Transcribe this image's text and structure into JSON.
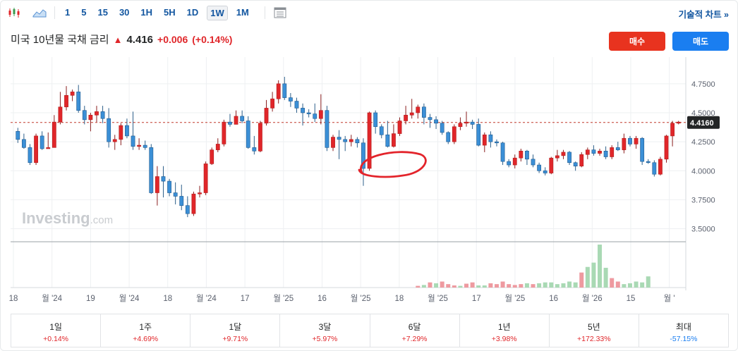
{
  "toolbar": {
    "timeframes": [
      "1",
      "5",
      "15",
      "30",
      "1H",
      "5H",
      "1D",
      "1W",
      "1M"
    ],
    "active_timeframe": "1W",
    "tech_chart_link": "기술적 차트 »"
  },
  "instrument": {
    "name": "미국 10년물 국채 금리",
    "price": "4.416",
    "change": "+0.006",
    "change_pct": "(+0.14%)",
    "up_color": "#e0262a"
  },
  "actions": {
    "buy_label": "매수",
    "sell_label": "매도"
  },
  "watermark": {
    "brand": "Investing",
    "suffix": ".com"
  },
  "chart_data": {
    "type": "candlestick",
    "y_ticks": [
      "4.7500",
      "4.5000",
      "4.2500",
      "4.0000",
      "3.7500",
      "3.5000"
    ],
    "ylim": [
      3.4,
      4.98
    ],
    "current_label": "4.4160",
    "current_value": 4.416,
    "x_labels": [
      "18",
      "월 '24",
      "19",
      "월 '24",
      "18",
      "월 '24",
      "17",
      "월 '25",
      "16",
      "월 '25",
      "18",
      "월 '25",
      "17",
      "월 '25",
      "16",
      "월 '26",
      "15",
      "월 '"
    ],
    "up_color": "#e0262a",
    "down_color": "#3b8fd6",
    "candles": [
      [
        4.34,
        4.37,
        4.24,
        4.27
      ],
      [
        4.27,
        4.32,
        4.19,
        4.2
      ],
      [
        4.2,
        4.23,
        4.05,
        4.07
      ],
      [
        4.07,
        4.32,
        4.05,
        4.3
      ],
      [
        4.3,
        4.34,
        4.18,
        4.19
      ],
      [
        4.19,
        4.33,
        4.19,
        4.2
      ],
      [
        4.2,
        4.48,
        4.2,
        4.42
      ],
      [
        4.42,
        4.68,
        4.4,
        4.55
      ],
      [
        4.55,
        4.73,
        4.52,
        4.65
      ],
      [
        4.65,
        4.7,
        4.6,
        4.68
      ],
      [
        4.68,
        4.74,
        4.5,
        4.52
      ],
      [
        4.52,
        4.56,
        4.4,
        4.44
      ],
      [
        4.44,
        4.5,
        4.34,
        4.48
      ],
      [
        4.48,
        4.56,
        4.42,
        4.51
      ],
      [
        4.51,
        4.56,
        4.41,
        4.45
      ],
      [
        4.45,
        4.54,
        4.2,
        4.25
      ],
      [
        4.25,
        4.31,
        4.18,
        4.27
      ],
      [
        4.27,
        4.41,
        4.22,
        4.39
      ],
      [
        4.39,
        4.45,
        4.28,
        4.3
      ],
      [
        4.3,
        4.51,
        4.18,
        4.21
      ],
      [
        4.21,
        4.28,
        4.18,
        4.22
      ],
      [
        4.22,
        4.26,
        4.18,
        4.2
      ],
      [
        4.2,
        4.23,
        3.8,
        3.81
      ],
      [
        3.81,
        4.04,
        3.7,
        3.95
      ],
      [
        3.95,
        4.04,
        3.77,
        3.91
      ],
      [
        3.91,
        3.93,
        3.78,
        3.81
      ],
      [
        3.81,
        3.9,
        3.71,
        3.78
      ],
      [
        3.78,
        3.88,
        3.66,
        3.7
      ],
      [
        3.7,
        3.78,
        3.6,
        3.63
      ],
      [
        3.63,
        3.82,
        3.61,
        3.8
      ],
      [
        3.8,
        3.87,
        3.77,
        3.81
      ],
      [
        3.81,
        4.08,
        3.79,
        4.06
      ],
      [
        4.06,
        4.2,
        4.05,
        4.18
      ],
      [
        4.18,
        4.28,
        4.16,
        4.23
      ],
      [
        4.23,
        4.44,
        4.21,
        4.42
      ],
      [
        4.42,
        4.49,
        4.38,
        4.4
      ],
      [
        4.4,
        4.52,
        4.4,
        4.47
      ],
      [
        4.47,
        4.52,
        4.41,
        4.43
      ],
      [
        4.43,
        4.47,
        4.19,
        4.2
      ],
      [
        4.2,
        4.3,
        4.14,
        4.17
      ],
      [
        4.17,
        4.43,
        4.16,
        4.41
      ],
      [
        4.41,
        4.61,
        4.39,
        4.54
      ],
      [
        4.54,
        4.68,
        4.51,
        4.62
      ],
      [
        4.62,
        4.78,
        4.58,
        4.75
      ],
      [
        4.75,
        4.81,
        4.61,
        4.63
      ],
      [
        4.63,
        4.67,
        4.55,
        4.6
      ],
      [
        4.6,
        4.63,
        4.5,
        4.54
      ],
      [
        4.54,
        4.58,
        4.39,
        4.5
      ],
      [
        4.5,
        4.53,
        4.46,
        4.49
      ],
      [
        4.49,
        4.58,
        4.42,
        4.45
      ],
      [
        4.45,
        4.66,
        4.4,
        4.52
      ],
      [
        4.52,
        4.56,
        4.17,
        4.2
      ],
      [
        4.2,
        4.31,
        4.17,
        4.29
      ],
      [
        4.29,
        4.35,
        4.1,
        4.27
      ],
      [
        4.27,
        4.3,
        4.17,
        4.25
      ],
      [
        4.25,
        4.31,
        4.21,
        4.27
      ],
      [
        4.27,
        4.29,
        4.2,
        4.24
      ],
      [
        4.24,
        4.28,
        3.87,
        4.02
      ],
      [
        4.02,
        4.51,
        4.0,
        4.5
      ],
      [
        4.5,
        4.52,
        4.32,
        4.38
      ],
      [
        4.38,
        4.4,
        4.28,
        4.31
      ],
      [
        4.31,
        4.43,
        4.2,
        4.21
      ],
      [
        4.21,
        4.4,
        4.2,
        4.32
      ],
      [
        4.32,
        4.46,
        4.3,
        4.43
      ],
      [
        4.43,
        4.56,
        4.4,
        4.48
      ],
      [
        4.48,
        4.62,
        4.45,
        4.5
      ],
      [
        4.5,
        4.57,
        4.45,
        4.55
      ],
      [
        4.55,
        4.58,
        4.4,
        4.46
      ],
      [
        4.46,
        4.49,
        4.37,
        4.44
      ],
      [
        4.44,
        4.47,
        4.36,
        4.41
      ],
      [
        4.41,
        4.43,
        4.31,
        4.33
      ],
      [
        4.33,
        4.34,
        4.23,
        4.25
      ],
      [
        4.25,
        4.4,
        4.23,
        4.38
      ],
      [
        4.38,
        4.46,
        4.35,
        4.41
      ],
      [
        4.41,
        4.51,
        4.38,
        4.42
      ],
      [
        4.42,
        4.44,
        4.36,
        4.4
      ],
      [
        4.4,
        4.45,
        4.21,
        4.22
      ],
      [
        4.22,
        4.33,
        4.16,
        4.31
      ],
      [
        4.31,
        4.34,
        4.2,
        4.25
      ],
      [
        4.25,
        4.27,
        4.21,
        4.24
      ],
      [
        4.24,
        4.25,
        4.05,
        4.08
      ],
      [
        4.08,
        4.1,
        4.03,
        4.05
      ],
      [
        4.05,
        4.14,
        4.02,
        4.11
      ],
      [
        4.11,
        4.19,
        4.08,
        4.17
      ],
      [
        4.17,
        4.18,
        4.05,
        4.1
      ],
      [
        4.1,
        4.14,
        4.03,
        4.05
      ],
      [
        4.05,
        4.07,
        3.98,
        4.0
      ],
      [
        4.0,
        4.03,
        3.96,
        3.98
      ],
      [
        3.98,
        4.12,
        3.97,
        4.11
      ],
      [
        4.11,
        4.18,
        4.08,
        4.13
      ],
      [
        4.13,
        4.18,
        4.1,
        4.16
      ],
      [
        4.16,
        4.17,
        4.05,
        4.07
      ],
      [
        4.07,
        4.08,
        4.0,
        4.04
      ],
      [
        4.04,
        4.16,
        4.03,
        4.14
      ],
      [
        4.14,
        4.2,
        4.1,
        4.18
      ],
      [
        4.18,
        4.22,
        4.13,
        4.15
      ],
      [
        4.15,
        4.19,
        4.13,
        4.17
      ],
      [
        4.17,
        4.21,
        4.1,
        4.12
      ],
      [
        4.12,
        4.22,
        4.1,
        4.2
      ],
      [
        4.2,
        4.25,
        4.17,
        4.18
      ],
      [
        4.18,
        4.32,
        4.15,
        4.28
      ],
      [
        4.28,
        4.3,
        4.21,
        4.23
      ],
      [
        4.23,
        4.3,
        4.19,
        4.28
      ],
      [
        4.28,
        4.29,
        4.05,
        4.08
      ],
      [
        4.08,
        4.1,
        4.06,
        4.07
      ],
      [
        4.07,
        4.09,
        3.95,
        3.97
      ],
      [
        3.97,
        4.12,
        3.96,
        4.1
      ],
      [
        4.1,
        4.31,
        4.07,
        4.3
      ],
      [
        4.3,
        4.43,
        4.21,
        4.41
      ],
      [
        4.41,
        4.43,
        4.4,
        4.42
      ]
    ],
    "volume_color": "#ee9aa0",
    "volume_up_color": "#a9d9b4",
    "volume": [
      [
        66,
        0.04,
        "d"
      ],
      [
        67,
        0.06,
        "u"
      ],
      [
        68,
        0.12,
        "d"
      ],
      [
        69,
        0.1,
        "u"
      ],
      [
        70,
        0.14,
        "d"
      ],
      [
        71,
        0.08,
        "d"
      ],
      [
        72,
        0.05,
        "d"
      ],
      [
        73,
        0.04,
        "u"
      ],
      [
        74,
        0.09,
        "d"
      ],
      [
        75,
        0.12,
        "d"
      ],
      [
        76,
        0.05,
        "u"
      ],
      [
        77,
        0.05,
        "u"
      ],
      [
        78,
        0.1,
        "d"
      ],
      [
        79,
        0.08,
        "d"
      ],
      [
        80,
        0.14,
        "d"
      ],
      [
        81,
        0.08,
        "d"
      ],
      [
        82,
        0.06,
        "d"
      ],
      [
        83,
        0.08,
        "d"
      ],
      [
        84,
        0.1,
        "u"
      ],
      [
        85,
        0.08,
        "d"
      ],
      [
        86,
        0.1,
        "u"
      ],
      [
        87,
        0.12,
        "u"
      ],
      [
        88,
        0.12,
        "u"
      ],
      [
        89,
        0.08,
        "u"
      ],
      [
        90,
        0.1,
        "u"
      ],
      [
        91,
        0.14,
        "u"
      ],
      [
        92,
        0.12,
        "u"
      ],
      [
        93,
        0.35,
        "d"
      ],
      [
        94,
        0.48,
        "u"
      ],
      [
        95,
        0.58,
        "u"
      ],
      [
        96,
        1.0,
        "u"
      ],
      [
        97,
        0.46,
        "u"
      ],
      [
        98,
        0.22,
        "d"
      ],
      [
        99,
        0.14,
        "d"
      ],
      [
        100,
        0.08,
        "u"
      ],
      [
        101,
        0.1,
        "u"
      ],
      [
        102,
        0.14,
        "u"
      ],
      [
        103,
        0.12,
        "u"
      ],
      [
        104,
        0.26,
        "u"
      ]
    ]
  },
  "performance": [
    {
      "label": "1일",
      "value": "+0.14%",
      "color": "#e0262a"
    },
    {
      "label": "1주",
      "value": "+4.69%",
      "color": "#e0262a"
    },
    {
      "label": "1달",
      "value": "+9.71%",
      "color": "#e0262a"
    },
    {
      "label": "3달",
      "value": "+5.97%",
      "color": "#e0262a"
    },
    {
      "label": "6달",
      "value": "+7.29%",
      "color": "#e0262a"
    },
    {
      "label": "1년",
      "value": "+3.98%",
      "color": "#e0262a"
    },
    {
      "label": "5년",
      "value": "+172.33%",
      "color": "#e0262a"
    },
    {
      "label": "최대",
      "value": "-57.15%",
      "color": "#1a7ef0"
    }
  ]
}
